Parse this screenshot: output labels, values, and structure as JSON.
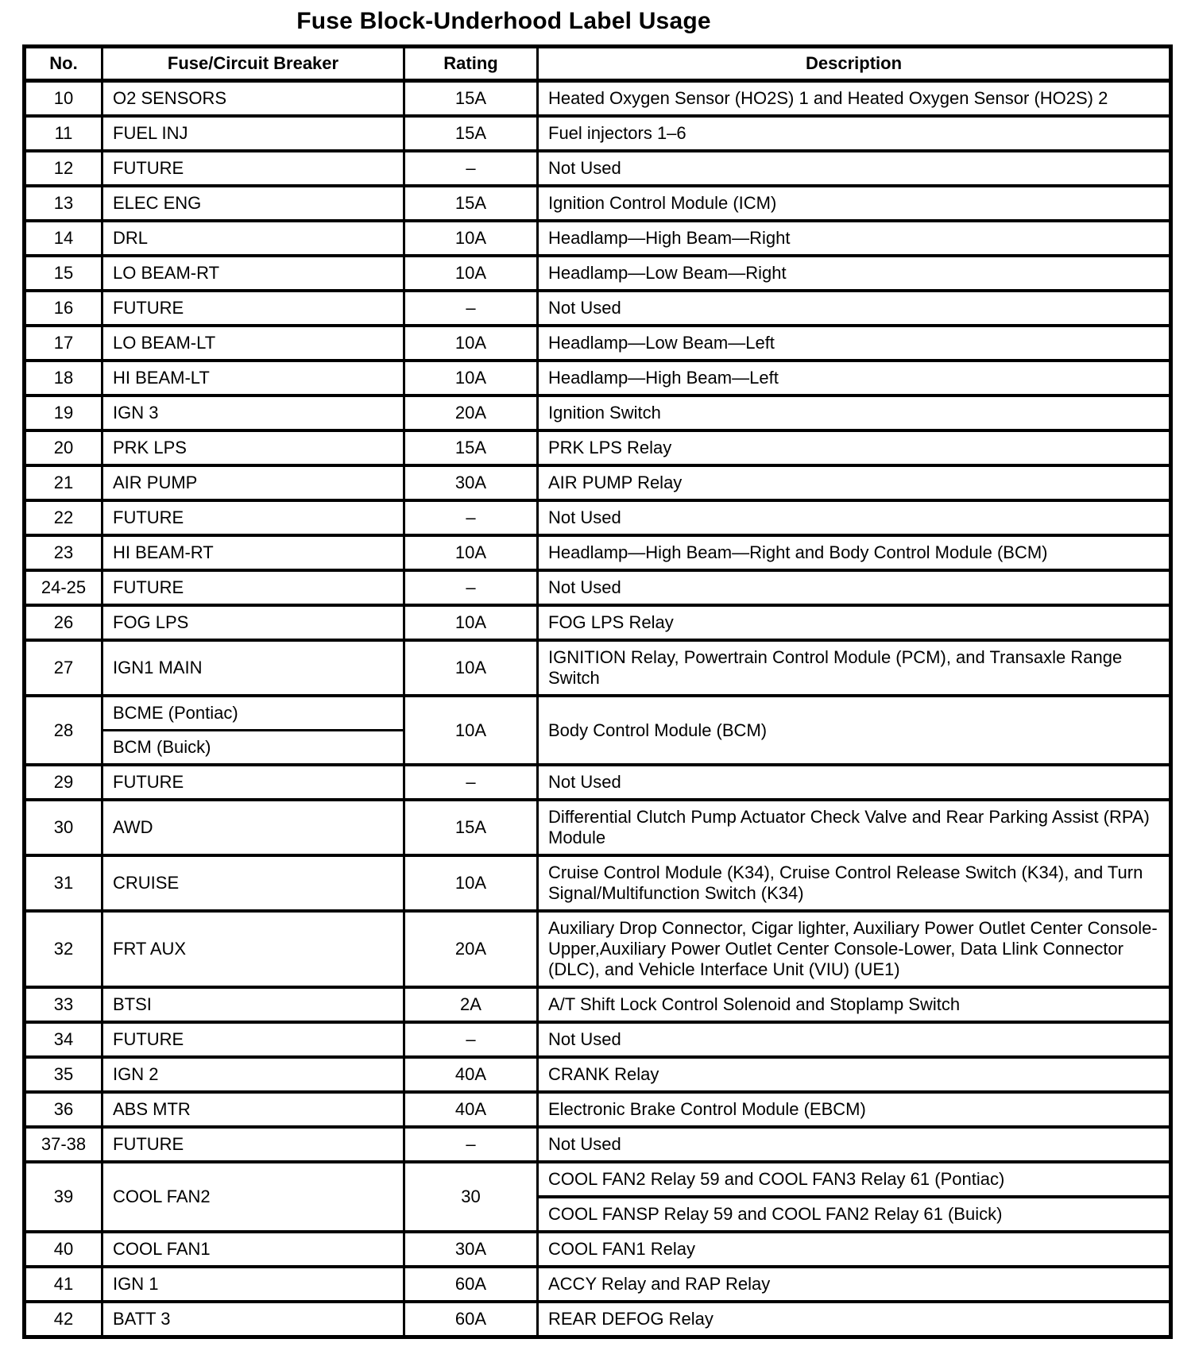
{
  "title": "Fuse Block-Underhood Label Usage",
  "table": {
    "headers": [
      "No.",
      "Fuse/Circuit Breaker",
      "Rating",
      "Description"
    ],
    "rows": [
      {
        "no": "10",
        "fuse": "O2 SENSORS",
        "rating": "15A",
        "desc": "Heated Oxygen Sensor (HO2S) 1 and Heated Oxygen Sensor (HO2S) 2"
      },
      {
        "no": "11",
        "fuse": "FUEL INJ",
        "rating": "15A",
        "desc": "Fuel injectors 1–6"
      },
      {
        "no": "12",
        "fuse": "FUTURE",
        "rating": "–",
        "desc": "Not Used"
      },
      {
        "no": "13",
        "fuse": "ELEC ENG",
        "rating": "15A",
        "desc": "Ignition Control Module (ICM)"
      },
      {
        "no": "14",
        "fuse": "DRL",
        "rating": "10A",
        "desc": "Headlamp—High Beam—Right"
      },
      {
        "no": "15",
        "fuse": "LO BEAM-RT",
        "rating": "10A",
        "desc": "Headlamp—Low Beam—Right"
      },
      {
        "no": "16",
        "fuse": "FUTURE",
        "rating": "–",
        "desc": "Not Used"
      },
      {
        "no": "17",
        "fuse": "LO BEAM-LT",
        "rating": "10A",
        "desc": "Headlamp—Low Beam—Left"
      },
      {
        "no": "18",
        "fuse": "HI BEAM-LT",
        "rating": "10A",
        "desc": "Headlamp—High Beam—Left"
      },
      {
        "no": "19",
        "fuse": "IGN 3",
        "rating": "20A",
        "desc": "Ignition Switch"
      },
      {
        "no": "20",
        "fuse": "PRK LPS",
        "rating": "15A",
        "desc": "PRK LPS Relay"
      },
      {
        "no": "21",
        "fuse": "AIR PUMP",
        "rating": "30A",
        "desc": "AIR PUMP Relay"
      },
      {
        "no": "22",
        "fuse": "FUTURE",
        "rating": "–",
        "desc": "Not Used"
      },
      {
        "no": "23",
        "fuse": "HI BEAM-RT",
        "rating": "10A",
        "desc": "Headlamp—High Beam—Right and Body Control Module (BCM)"
      },
      {
        "no": "24-25",
        "fuse": "FUTURE",
        "rating": "–",
        "desc": "Not Used"
      },
      {
        "no": "26",
        "fuse": "FOG LPS",
        "rating": "10A",
        "desc": "FOG LPS Relay"
      },
      {
        "no": "27",
        "fuse": "IGN1 MAIN",
        "rating": "10A",
        "desc": "IGNITION Relay, Powertrain Control Module (PCM), and Transaxle Range Switch"
      },
      {
        "no": "28",
        "fuse_split": [
          "BCME (Pontiac)",
          "BCM (Buick)"
        ],
        "rating": "10A",
        "desc": "Body Control Module (BCM)"
      },
      {
        "no": "29",
        "fuse": "FUTURE",
        "rating": "–",
        "desc": "Not Used"
      },
      {
        "no": "30",
        "fuse": "AWD",
        "rating": "15A",
        "desc": "Differential Clutch Pump Actuator Check Valve and Rear Parking Assist (RPA) Module"
      },
      {
        "no": "31",
        "fuse": "CRUISE",
        "rating": "10A",
        "desc": "Cruise Control Module (K34), Cruise Control Release Switch (K34), and Turn Signal/Multifunction Switch (K34)"
      },
      {
        "no": "32",
        "fuse": "FRT AUX",
        "rating": "20A",
        "desc": "Auxiliary Drop Connector, Cigar lighter, Auxiliary Power Outlet Center Console-Upper,Auxiliary Power Outlet Center Console-Lower, Data Llink Connector (DLC), and Vehicle Interface Unit (VIU) (UE1)"
      },
      {
        "no": "33",
        "fuse": "BTSI",
        "rating": "2A",
        "desc": "A/T Shift Lock Control Solenoid and Stoplamp Switch"
      },
      {
        "no": "34",
        "fuse": "FUTURE",
        "rating": "–",
        "desc": "Not Used"
      },
      {
        "no": "35",
        "fuse": "IGN 2",
        "rating": "40A",
        "desc": "CRANK Relay"
      },
      {
        "no": "36",
        "fuse": "ABS MTR",
        "rating": "40A",
        "desc": "Electronic Brake Control Module (EBCM)"
      },
      {
        "no": "37-38",
        "fuse": "FUTURE",
        "rating": "–",
        "desc": "Not Used"
      },
      {
        "no": "39",
        "fuse": "COOL FAN2",
        "rating": "30",
        "desc_split": [
          "COOL FAN2 Relay 59 and COOL FAN3 Relay 61 (Pontiac)",
          "COOL FANSP Relay 59 and COOL FAN2 Relay 61 (Buick)"
        ]
      },
      {
        "no": "40",
        "fuse": "COOL FAN1",
        "rating": "30A",
        "desc": "COOL FAN1 Relay"
      },
      {
        "no": "41",
        "fuse": "IGN 1",
        "rating": "60A",
        "desc": "ACCY Relay and RAP Relay"
      },
      {
        "no": "42",
        "fuse": "BATT 3",
        "rating": "60A",
        "desc": "REAR DEFOG Relay"
      }
    ]
  }
}
